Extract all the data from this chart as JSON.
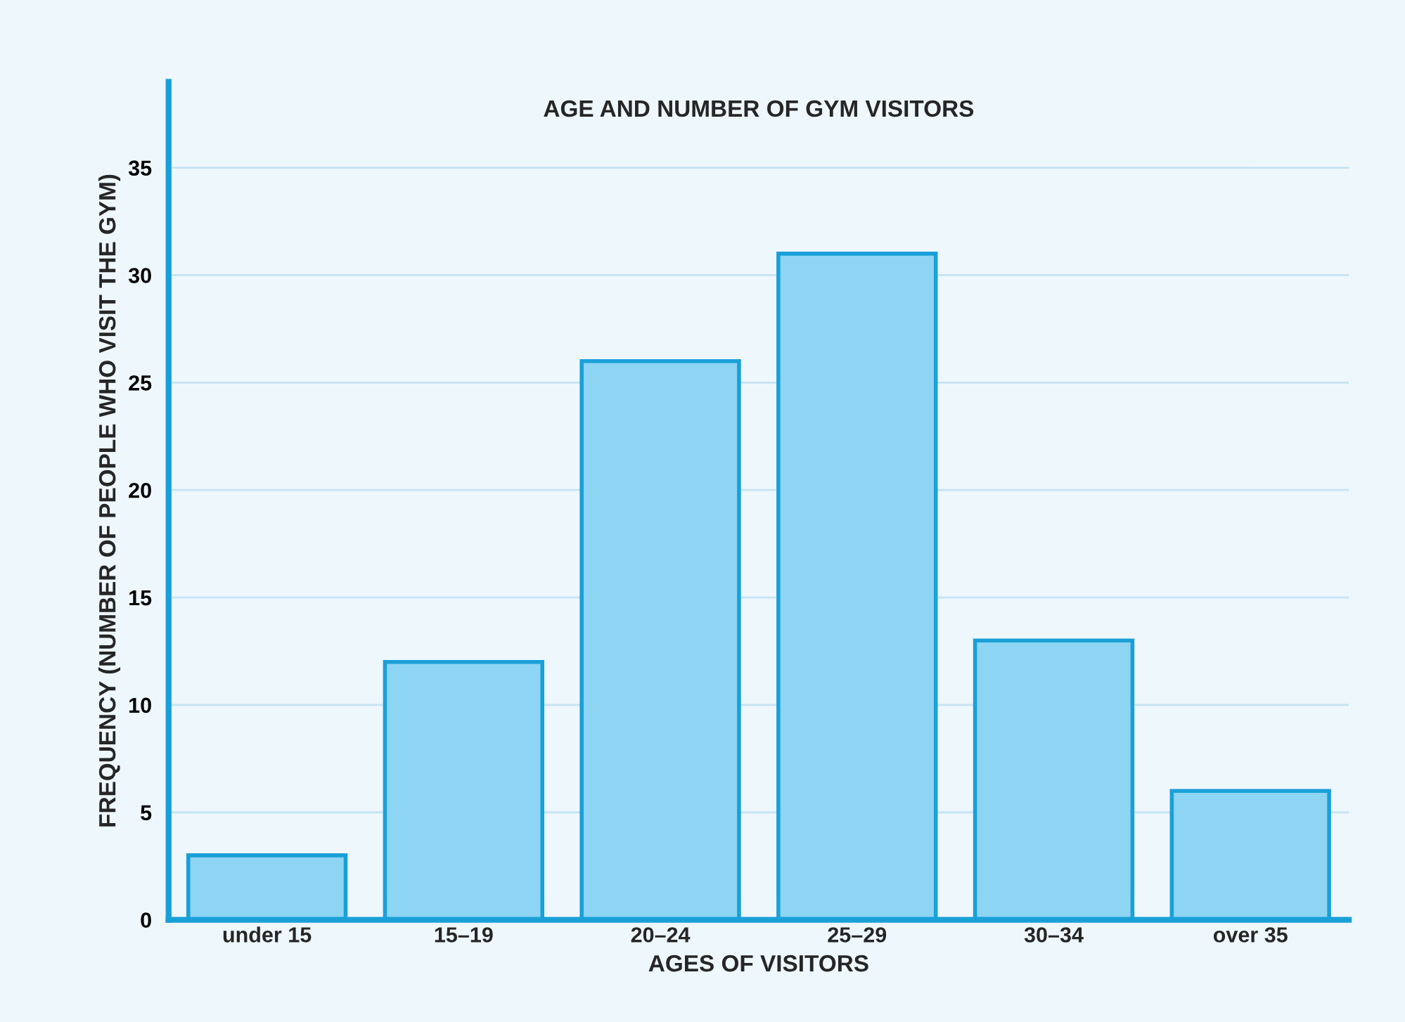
{
  "chart_data": {
    "type": "bar",
    "title": "AGE AND NUMBER OF GYM VISITORS",
    "xlabel": "AGES OF VISITORS",
    "ylabel": "FREQUENCY (NUMBER OF PEOPLE WHO VISIT THE GYM)",
    "categories": [
      "under 15",
      "15–19",
      "20–24",
      "25–29",
      "30–34",
      "over 35"
    ],
    "values": [
      3,
      12,
      26,
      31,
      13,
      6
    ],
    "color": "#8dd5f2",
    "ylim": [
      0,
      39
    ],
    "yticks": [
      0,
      5,
      10,
      15,
      20,
      25,
      30,
      35
    ],
    "grid": "y"
  }
}
